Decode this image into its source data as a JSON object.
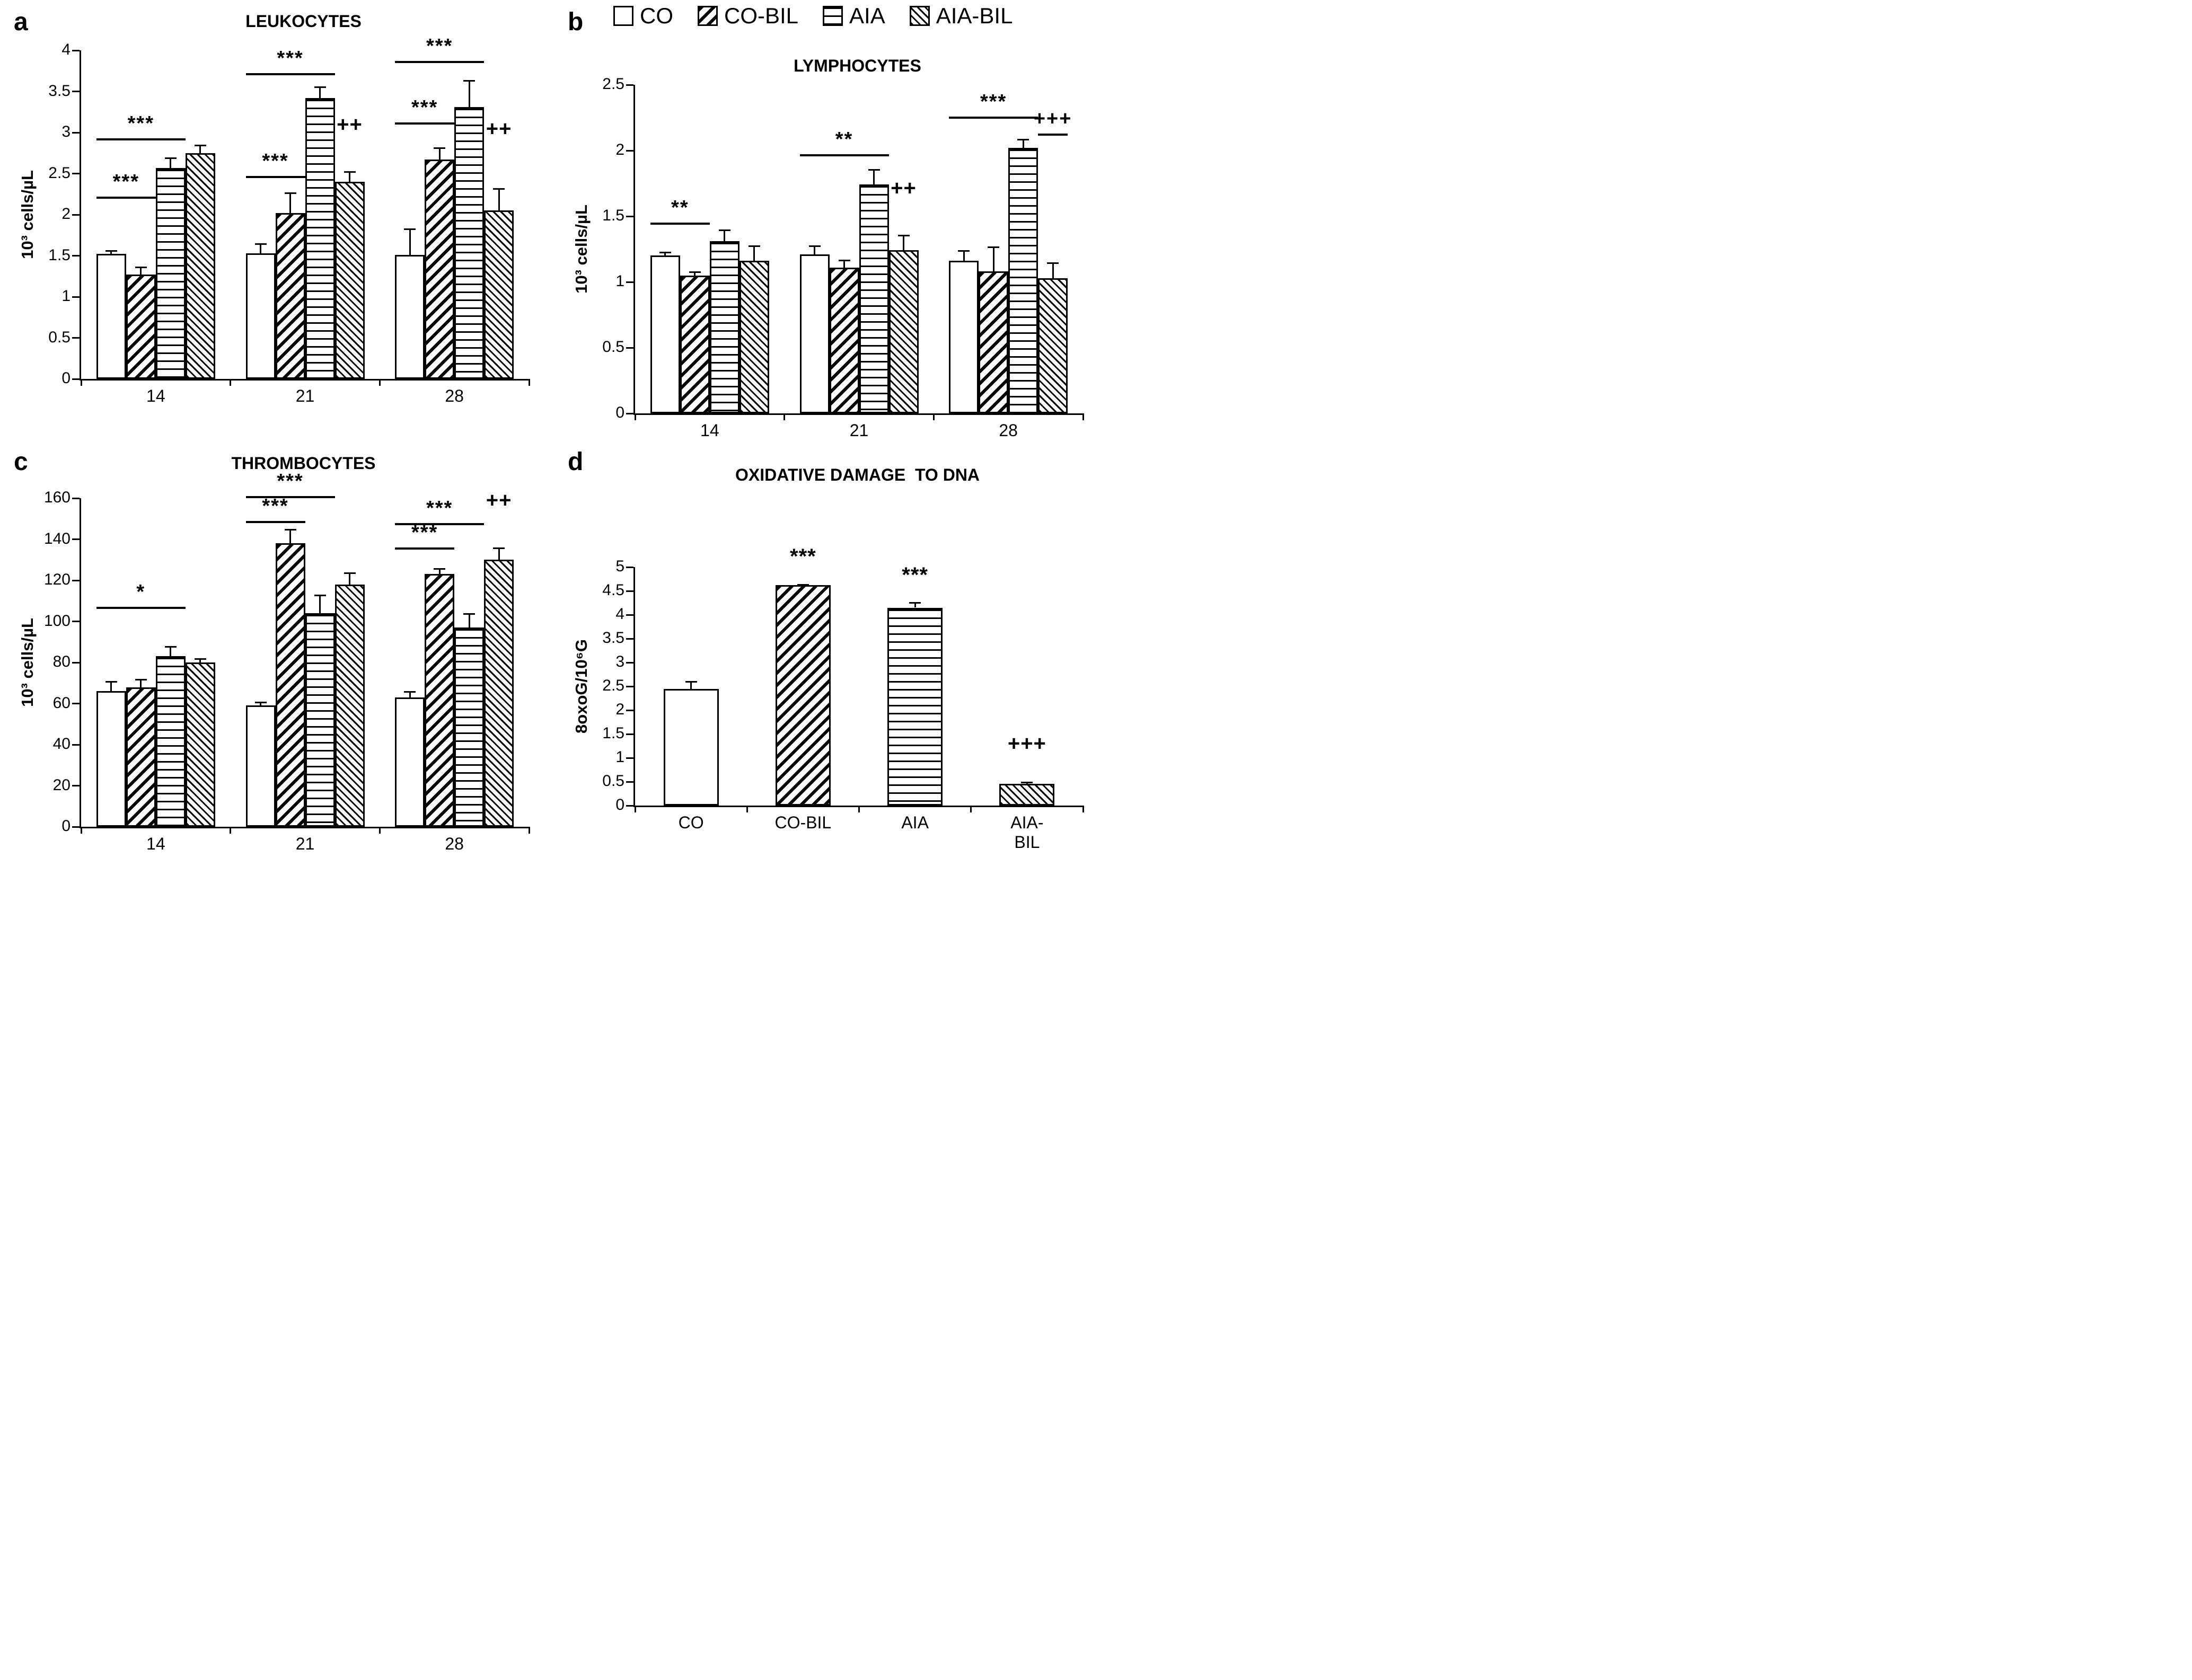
{
  "page": {
    "background": "#ffffff",
    "foreground": "#000000"
  },
  "legend": {
    "items": [
      {
        "label": "CO",
        "swatch": "co"
      },
      {
        "label": "CO-BIL",
        "swatch": "cobil"
      },
      {
        "label": "AIA",
        "swatch": "aia"
      },
      {
        "label": "AIA-BIL",
        "swatch": "aiabil"
      }
    ]
  },
  "chart_data": [
    {
      "id": "a",
      "letter": "a",
      "type": "bar",
      "title": "LEUKOCYTES",
      "ylabel": "10³ cells/µL",
      "xlabel": "",
      "ylim": [
        0,
        4
      ],
      "yticks": [
        0,
        0.5,
        1,
        1.5,
        2,
        2.5,
        3,
        3.5,
        4
      ],
      "categories": [
        "14",
        "21",
        "28"
      ],
      "grid": false,
      "series": [
        {
          "name": "CO",
          "values": [
            1.52,
            1.53,
            1.51
          ],
          "errors": [
            0.05,
            0.12,
            0.32
          ]
        },
        {
          "name": "CO-BIL",
          "values": [
            1.27,
            2.02,
            2.67
          ],
          "errors": [
            0.1,
            0.25,
            0.15
          ]
        },
        {
          "name": "AIA",
          "values": [
            2.57,
            3.42,
            3.31
          ],
          "errors": [
            0.13,
            0.14,
            0.33
          ]
        },
        {
          "name": "AIA-BIL",
          "values": [
            2.75,
            2.4,
            2.05
          ],
          "errors": [
            0.1,
            0.13,
            0.27
          ]
        }
      ],
      "annotations": [
        {
          "text": "***",
          "group": 0,
          "span": [
            0,
            2
          ],
          "y": 2.93
        },
        {
          "text": "***",
          "group": 0,
          "span": [
            0,
            1
          ],
          "y": 2.22
        },
        {
          "text": "***",
          "group": 1,
          "span": [
            0,
            2
          ],
          "y": 3.72
        },
        {
          "text": "***",
          "group": 1,
          "span": [
            0,
            1
          ],
          "y": 2.47
        },
        {
          "text": "++",
          "group": 1,
          "bar": 3,
          "y": 2.95
        },
        {
          "text": "***",
          "group": 2,
          "span": [
            0,
            2
          ],
          "y": 3.87
        },
        {
          "text": "***",
          "group": 2,
          "span": [
            0,
            1
          ],
          "y": 3.12
        },
        {
          "text": "++",
          "group": 2,
          "bar": 3,
          "y": 2.9
        }
      ]
    },
    {
      "id": "b",
      "letter": "b",
      "type": "bar",
      "title": "LYMPHOCYTES",
      "ylabel": "10³ cells/µL",
      "xlabel": "",
      "ylim": [
        0,
        2.5
      ],
      "yticks": [
        0,
        0.5,
        1,
        1.5,
        2,
        2.5
      ],
      "categories": [
        "14",
        "21",
        "28"
      ],
      "grid": false,
      "series": [
        {
          "name": "CO",
          "values": [
            1.2,
            1.21,
            1.16
          ],
          "errors": [
            0.03,
            0.07,
            0.08
          ]
        },
        {
          "name": "CO-BIL",
          "values": [
            1.05,
            1.11,
            1.08
          ],
          "errors": [
            0.03,
            0.06,
            0.19
          ]
        },
        {
          "name": "AIA",
          "values": [
            1.31,
            1.74,
            2.02
          ],
          "errors": [
            0.09,
            0.12,
            0.07
          ]
        },
        {
          "name": "AIA-BIL",
          "values": [
            1.16,
            1.24,
            1.03
          ],
          "errors": [
            0.12,
            0.12,
            0.12
          ]
        }
      ],
      "annotations": [
        {
          "text": "**",
          "group": 0,
          "span": [
            0,
            1
          ],
          "y": 1.45
        },
        {
          "text": "**",
          "group": 1,
          "span": [
            0,
            2
          ],
          "y": 1.97
        },
        {
          "text": "++",
          "group": 1,
          "bar": 3,
          "y": 1.62
        },
        {
          "text": "***",
          "group": 2,
          "span": [
            0,
            2
          ],
          "y": 2.26
        },
        {
          "text": "+++",
          "group": 2,
          "span": [
            3,
            3
          ],
          "y": 2.13
        }
      ]
    },
    {
      "id": "c",
      "letter": "c",
      "type": "bar",
      "title": "THROMBOCYTES",
      "ylabel": "10³ cells/µL",
      "xlabel": "",
      "ylim": [
        0,
        160
      ],
      "yticks": [
        0,
        20,
        40,
        60,
        80,
        100,
        120,
        140,
        160
      ],
      "categories": [
        "14",
        "21",
        "28"
      ],
      "grid": false,
      "series": [
        {
          "name": "CO",
          "values": [
            66,
            59,
            63
          ],
          "errors": [
            5,
            2,
            3
          ]
        },
        {
          "name": "CO-BIL",
          "values": [
            68,
            138,
            123
          ],
          "errors": [
            4,
            7,
            3
          ]
        },
        {
          "name": "AIA",
          "values": [
            83,
            104,
            97
          ],
          "errors": [
            5,
            9,
            7
          ]
        },
        {
          "name": "AIA-BIL",
          "values": [
            80,
            118,
            130
          ],
          "errors": [
            2,
            6,
            6
          ]
        }
      ],
      "annotations": [
        {
          "text": "*",
          "group": 0,
          "span": [
            0,
            2
          ],
          "y": 107
        },
        {
          "text": "***",
          "group": 1,
          "span": [
            0,
            2
          ],
          "y": 161
        },
        {
          "text": "***",
          "group": 1,
          "span": [
            0,
            1
          ],
          "y": 149
        },
        {
          "text": "***",
          "group": 2,
          "span": [
            0,
            2
          ],
          "y": 148
        },
        {
          "text": "***",
          "group": 2,
          "span": [
            0,
            1
          ],
          "y": 136
        },
        {
          "text": "++",
          "group": 2,
          "bar": 3,
          "y": 153
        }
      ]
    },
    {
      "id": "d",
      "letter": "d",
      "type": "bar",
      "title": "OXIDATIVE DAMAGE  TO DNA",
      "ylabel": "8oxoG/10⁶G",
      "xlabel": "",
      "ylim": [
        0,
        5
      ],
      "yticks": [
        0,
        0.5,
        1,
        1.5,
        2,
        2.5,
        3,
        3.5,
        4,
        4.5,
        5
      ],
      "categories": [
        "CO",
        "CO-BIL",
        "AIA",
        "AIA-BIL"
      ],
      "grid": false,
      "hatch_by_category": true,
      "series": [
        {
          "name": "8oxoG",
          "values": [
            2.44,
            4.62,
            4.15,
            0.46
          ],
          "errors": [
            0.17,
            0.03,
            0.12,
            0.04
          ]
        }
      ],
      "annotations": [
        {
          "text": "***",
          "group": 1,
          "bar": 0,
          "y": 4.97
        },
        {
          "text": "***",
          "group": 2,
          "bar": 0,
          "y": 4.58
        },
        {
          "text": "+++",
          "group": 3,
          "bar": 0,
          "y": 1.05
        }
      ]
    }
  ]
}
